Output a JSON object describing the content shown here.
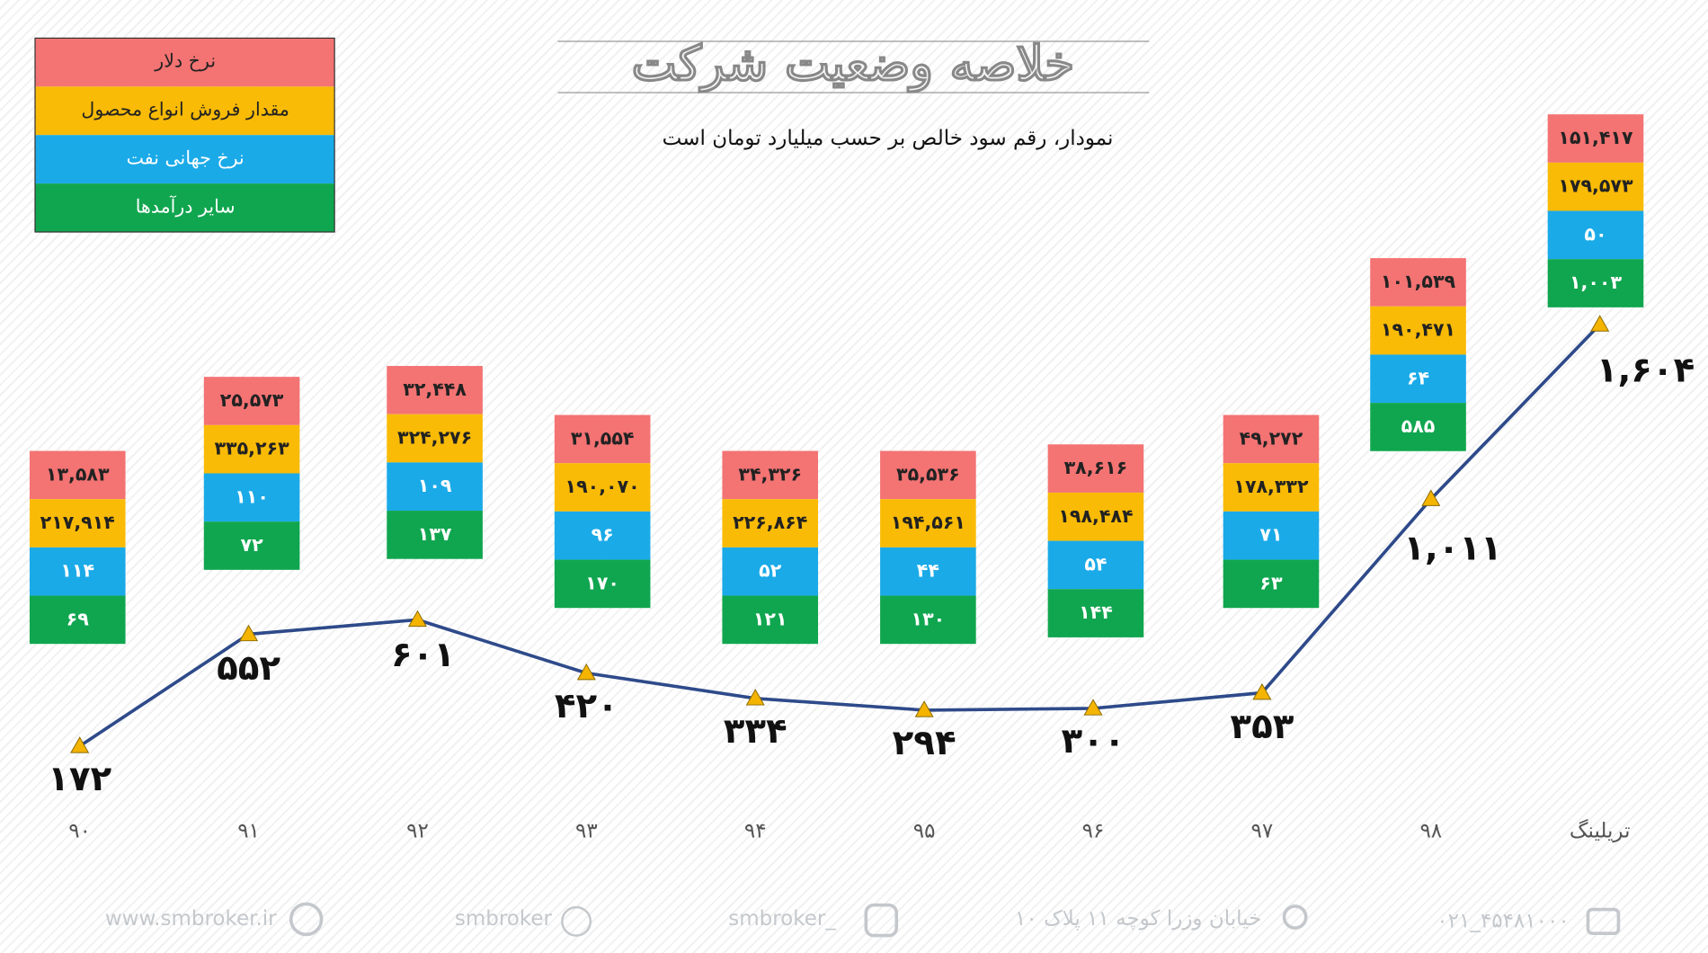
{
  "chart_data": {
    "type": "line",
    "title": "خلاصه وضعیت شرکت",
    "subtitle": "نمودار، رقم سود خالص بر حسب میلیارد تومان است",
    "categories": [
      "۹۰",
      "۹۱",
      "۹۲",
      "۹۳",
      "۹۴",
      "۹۵",
      "۹۶",
      "۹۷",
      "۹۸",
      "تریلینگ"
    ],
    "values": [
      172,
      552,
      601,
      420,
      334,
      294,
      300,
      353,
      1011,
      1604
    ],
    "value_labels": [
      "۱۷۲",
      "۵۵۲",
      "۶۰۱",
      "۴۲۰",
      "۳۳۴",
      "۲۹۴",
      "۳۰۰",
      "۳۵۳",
      "۱,۰۱۱",
      "۱,۶۰۴"
    ],
    "color": "#2e4a8a",
    "marker_color": "#f4b400",
    "ylim": [
      0,
      2700
    ],
    "series": [
      {
        "name": "نرخ دلار",
        "color": "#f47373",
        "values": [
          13583,
          25573,
          32448,
          31554,
          34326,
          35536,
          38616,
          49272,
          101539,
          151417
        ],
        "value_labels": [
          "۱۳,۵۸۳",
          "۲۵,۵۷۳",
          "۳۲,۴۴۸",
          "۳۱,۵۵۴",
          "۳۴,۳۲۶",
          "۳۵,۵۳۶",
          "۳۸,۶۱۶",
          "۴۹,۲۷۲",
          "۱۰۱,۵۳۹",
          "۱۵۱,۴۱۷"
        ]
      },
      {
        "name": "مقدار فروش انواع محصول",
        "color": "#f9bb06",
        "values": [
          217914,
          335263,
          324276,
          190070,
          226864,
          194561,
          198484,
          178332,
          190471,
          179573
        ],
        "value_labels": [
          "۲۱۷,۹۱۴",
          "۳۳۵,۲۶۳",
          "۳۲۴,۲۷۶",
          "۱۹۰,۰۷۰",
          "۲۲۶,۸۶۴",
          "۱۹۴,۵۶۱",
          "۱۹۸,۴۸۴",
          "۱۷۸,۳۳۲",
          "۱۹۰,۴۷۱",
          "۱۷۹,۵۷۳"
        ]
      },
      {
        "name": "نرخ جهانی نفت",
        "color": "#1aaae8",
        "values": [
          114,
          110,
          109,
          96,
          52,
          44,
          54,
          71,
          64,
          50
        ],
        "value_labels": [
          "۱۱۴",
          "۱۱۰",
          "۱۰۹",
          "۹۶",
          "۵۲",
          "۴۴",
          "۵۴",
          "۷۱",
          "۶۴",
          "۵۰"
        ]
      },
      {
        "name": "سایر درآمدها",
        "color": "#10a64f",
        "values": [
          69,
          72,
          137,
          170,
          121,
          130,
          144,
          63,
          585,
          1003
        ],
        "value_labels": [
          "۶۹",
          "۷۲",
          "۱۳۷",
          "۱۷۰",
          "۱۲۱",
          "۱۳۰",
          "۱۴۴",
          "۶۳",
          "۵۸۵",
          "۱,۰۰۳"
        ]
      }
    ]
  },
  "footer": {
    "website": "www.smbroker.ir",
    "telegram": "smbroker",
    "instagram": "smbroker_",
    "address": "خیابان وزرا کوچه ۱۱ پلاک ۱۰",
    "phone": "۰۲۱_۴۵۴۸۱۰۰۰"
  }
}
